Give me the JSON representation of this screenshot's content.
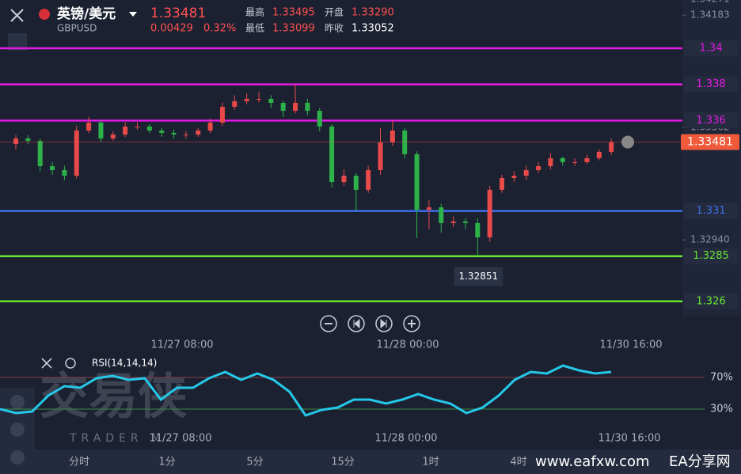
{
  "header": {
    "name": "英镑/美元",
    "symbol": "GBPUSD",
    "price": "1.33481",
    "change": "0.00429",
    "change_pct": "0.32%",
    "high_label": "最高",
    "high": "1.33495",
    "open_label": "开盘",
    "open": "1.33290",
    "low_label": "最低",
    "low": "1.33099",
    "prev_label": "昨收",
    "prev": "1.33052"
  },
  "chart": {
    "type": "candlestick",
    "ylim": [
      1.32516,
      1.34267
    ],
    "up_color": "#e84a4a",
    "down_color": "#2db24a",
    "candles": [
      [
        1.3347,
        1.3352,
        1.3344,
        1.33501
      ],
      [
        1.33501,
        1.3352,
        1.3347,
        1.33488
      ],
      [
        1.33488,
        1.335,
        1.3332,
        1.33348
      ],
      [
        1.33348,
        1.3337,
        1.333,
        1.33326
      ],
      [
        1.33326,
        1.3335,
        1.3327,
        1.33295
      ],
      [
        1.33295,
        1.3357,
        1.3328,
        1.33545
      ],
      [
        1.33545,
        1.3362,
        1.3353,
        1.33589
      ],
      [
        1.33589,
        1.336,
        1.3348,
        1.33501
      ],
      [
        1.33501,
        1.3354,
        1.3349,
        1.33523
      ],
      [
        1.33523,
        1.3359,
        1.3351,
        1.33567
      ],
      [
        1.33567,
        1.3359,
        1.3355,
        1.33567
      ],
      [
        1.33567,
        1.3358,
        1.3353,
        1.33545
      ],
      [
        1.33545,
        1.3356,
        1.3351,
        1.33532
      ],
      [
        1.33532,
        1.3355,
        1.335,
        1.33523
      ],
      [
        1.33523,
        1.3354,
        1.335,
        1.33523
      ],
      [
        1.33523,
        1.3356,
        1.3351,
        1.33545
      ],
      [
        1.33545,
        1.3361,
        1.3353,
        1.33589
      ],
      [
        1.33589,
        1.337,
        1.3357,
        1.33676
      ],
      [
        1.33676,
        1.3374,
        1.3366,
        1.33707
      ],
      [
        1.33707,
        1.3375,
        1.3369,
        1.3372
      ],
      [
        1.3372,
        1.3376,
        1.337,
        1.3372
      ],
      [
        1.3372,
        1.3374,
        1.3367,
        1.33698
      ],
      [
        1.33698,
        1.3371,
        1.3362,
        1.33654
      ],
      [
        1.33654,
        1.338,
        1.3364,
        1.33698
      ],
      [
        1.33698,
        1.3372,
        1.3363,
        1.33654
      ],
      [
        1.33654,
        1.3367,
        1.3354,
        1.33567
      ],
      [
        1.33567,
        1.3358,
        1.3323,
        1.3326
      ],
      [
        1.3326,
        1.3333,
        1.3324,
        1.33295
      ],
      [
        1.33295,
        1.3331,
        1.331,
        1.33217
      ],
      [
        1.33217,
        1.3335,
        1.332,
        1.33326
      ],
      [
        1.33326,
        1.3356,
        1.333,
        1.33479
      ],
      [
        1.33479,
        1.336,
        1.3346,
        1.33545
      ],
      [
        1.33545,
        1.3356,
        1.3339,
        1.33414
      ],
      [
        1.33414,
        1.3343,
        1.3295,
        1.33107
      ],
      [
        1.33107,
        1.3316,
        1.33,
        1.3312
      ],
      [
        1.3312,
        1.3314,
        1.3298,
        1.33033
      ],
      [
        1.33033,
        1.3307,
        1.3301,
        1.33042
      ],
      [
        1.33042,
        1.3306,
        1.33,
        1.33033
      ],
      [
        1.33033,
        1.3306,
        1.32851,
        1.32954
      ],
      [
        1.32954,
        1.3324,
        1.3293,
        1.33217
      ],
      [
        1.33217,
        1.333,
        1.332,
        1.33282
      ],
      [
        1.33282,
        1.3332,
        1.3326,
        1.33295
      ],
      [
        1.33295,
        1.3335,
        1.3327,
        1.33326
      ],
      [
        1.33326,
        1.3337,
        1.3331,
        1.33348
      ],
      [
        1.33348,
        1.3342,
        1.3333,
        1.33392
      ],
      [
        1.33392,
        1.334,
        1.3335,
        1.3337
      ],
      [
        1.3337,
        1.3339,
        1.3335,
        1.3337
      ],
      [
        1.3337,
        1.3341,
        1.3336,
        1.33392
      ],
      [
        1.33392,
        1.3344,
        1.3338,
        1.33427
      ],
      [
        1.33427,
        1.335,
        1.3341,
        1.33481
      ]
    ],
    "levels": [
      {
        "value": 1.34,
        "color": "#e619e6"
      },
      {
        "value": 1.338,
        "color": "#e619e6"
      },
      {
        "value": 1.336,
        "color": "#e619e6"
      },
      {
        "value": 1.331,
        "color": "#3a6fe8"
      },
      {
        "value": 1.3285,
        "color": "#66e633"
      },
      {
        "value": 1.326,
        "color": "#66e633"
      }
    ],
    "yticks": [
      1.34271,
      1.34183,
      1.33562,
      {
        "value": 1.3294,
        "label": "1.32940"
      }
    ],
    "x_labels": [
      "11/27 08:00",
      "11/28 00:00",
      "11/30 16:00"
    ]
  },
  "rsi": {
    "type": "line",
    "title": "RSI(14,14,14)",
    "color": "#25c8e8",
    "ylim": [
      0,
      100
    ],
    "yticks": [
      {
        "value": 70,
        "label": "70%"
      },
      {
        "value": 30,
        "label": "30%"
      }
    ],
    "values": [
      30,
      25,
      27,
      47,
      59,
      57,
      69,
      72,
      67,
      69,
      42,
      57,
      57,
      69,
      77,
      67,
      75,
      67,
      52,
      22,
      29,
      32,
      42,
      42,
      37,
      42,
      49,
      42,
      37,
      25,
      32,
      47,
      67,
      77,
      75,
      85,
      79,
      75,
      77
    ],
    "x_labels": [
      "11/27 08:00",
      "11/28 00:00",
      "11/30 16:00"
    ]
  },
  "periods": [
    "分时",
    "1分",
    "5分",
    "15分",
    "1时",
    "4时"
  ],
  "watermark": {
    "brand": "交易侠",
    "brand_sub": "TRADER M",
    "site": "www.eafxw.com",
    "site_name": "EA分享网"
  }
}
